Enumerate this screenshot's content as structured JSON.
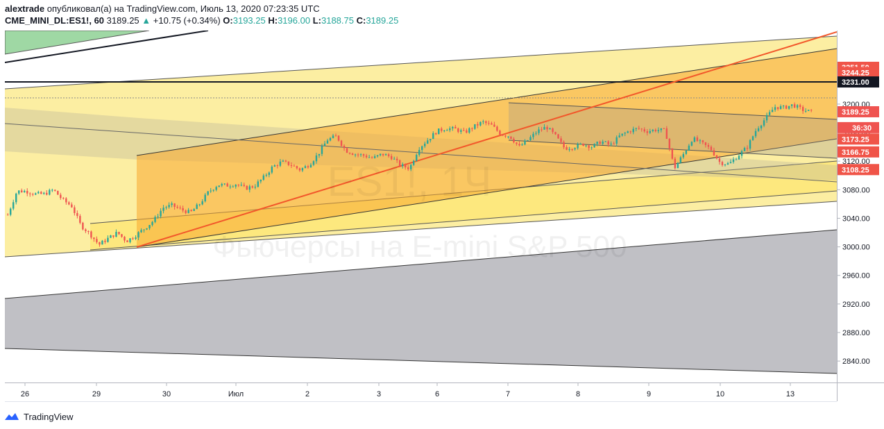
{
  "header": {
    "author": "alextrade",
    "published_text": "опубликовал(а) на TradingView.com, Июль 13, 2020 07:23:35 UTC",
    "symbol": "CME_MINI_DL:ES1!, 60",
    "last": "3189.25",
    "change": "+10.75 (+0.34%)",
    "open_label": "O:",
    "open": "3193.25",
    "high_label": "H:",
    "high": "3196.00",
    "low_label": "L:",
    "low": "3188.75",
    "close_label": "C:",
    "close": "3189.25"
  },
  "watermark": {
    "symbol": "ES1!, 1Ч",
    "description": "Фьючерсы на E-mini S&P 500"
  },
  "footer": {
    "brand": "TradingView"
  },
  "colors": {
    "up": "#26a69a",
    "down": "#ef5350",
    "yellow": "#fbe77a",
    "orange": "#f8a72d",
    "grey": "#8c8d95",
    "green": "#7fc98a",
    "trend": "#f2572a"
  },
  "chart_data": {
    "type": "candlestick",
    "ylim": [
      2810,
      3303
    ],
    "y_ticks": [
      "3200.00",
      "3160.00",
      "3120.00",
      "3080.00",
      "3040.00",
      "3000.00",
      "2960.00",
      "2920.00",
      "2880.00",
      "2840.00"
    ],
    "x_ticks": [
      "26",
      "29",
      "30",
      "Июл",
      "2",
      "3",
      "6",
      "7",
      "8",
      "9",
      "10",
      "13"
    ],
    "price_labels": [
      {
        "text": "3251.50",
        "price": 3251.5,
        "color": "#f05448"
      },
      {
        "text": "3244.25",
        "price": 3244.25,
        "color": "#f05448"
      },
      {
        "text": "3231.00",
        "price": 3231.0,
        "color": "#131722"
      },
      {
        "text": "3189.25",
        "price": 3189.25,
        "color": "#ef5350"
      },
      {
        "text": "36:30",
        "price": 3167.0,
        "color": "#ef5350"
      },
      {
        "text": "3173.25",
        "price": 3151.0,
        "color": "#f05448"
      },
      {
        "text": "3166.75",
        "price": 3133.0,
        "color": "#f05448"
      },
      {
        "text": "3108.25",
        "price": 3108.25,
        "color": "#f05448"
      }
    ],
    "horizontal_line": 3231.0,
    "candles_path": [
      3045,
      3078,
      3078,
      3074,
      3074,
      3080,
      3066,
      3057,
      3030,
      3018,
      3003,
      3012,
      3020,
      3008,
      3016,
      3026,
      3037,
      3055,
      3058,
      3052,
      3048,
      3060,
      3077,
      3087,
      3086,
      3088,
      3082,
      3085,
      3097,
      3112,
      3119,
      3115,
      3108,
      3115,
      3130,
      3150,
      3155,
      3135,
      3130,
      3128,
      3124,
      3130,
      3126,
      3114,
      3110,
      3138,
      3150,
      3162,
      3166,
      3165,
      3160,
      3168,
      3175,
      3170,
      3158,
      3155,
      3140,
      3150,
      3162,
      3168,
      3155,
      3138,
      3140,
      3144,
      3140,
      3148,
      3142,
      3155,
      3162,
      3166,
      3162,
      3164,
      3163,
      3110,
      3130,
      3152,
      3145,
      3137,
      3118,
      3116,
      3128,
      3140,
      3165,
      3180,
      3196,
      3195,
      3199,
      3192,
      3189
    ]
  }
}
